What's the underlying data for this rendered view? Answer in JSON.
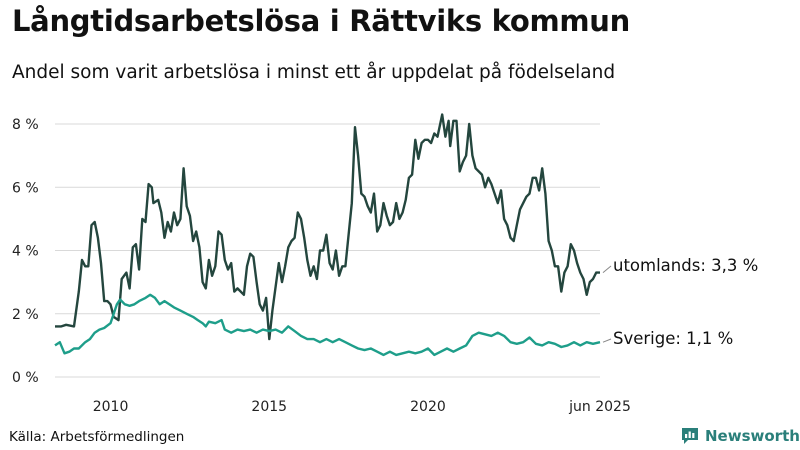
{
  "header": {
    "title": "Långtidsarbetslösa i Rättviks kommun",
    "subtitle": "Andel som varit arbetslösa i minst ett år uppdelat på födelseland"
  },
  "footer": {
    "source": "Källa: Arbetsförmedlingen",
    "brand": "Newsworthy",
    "brand_icon": "bar-chart-speech-icon"
  },
  "colors": {
    "utomlands": "#24463e",
    "sverige": "#1e9e8a",
    "grid": "#d9d9d9",
    "brand": "#2a7f7a"
  },
  "chart_data": {
    "type": "line",
    "title": "Långtidsarbetslösa i Rättviks kommun",
    "subtitle": "Andel som varit arbetslösa i minst ett år uppdelat på födelseland",
    "xlim": [
      2008.25,
      2025.42
    ],
    "ylim": [
      0,
      8.5
    ],
    "y_ticks": [
      {
        "value": 0,
        "label": "0 %"
      },
      {
        "value": 2,
        "label": "2 %"
      },
      {
        "value": 4,
        "label": "4 %"
      },
      {
        "value": 6,
        "label": "6 %"
      },
      {
        "value": 8,
        "label": "8 %"
      }
    ],
    "x_ticks": [
      {
        "value": 2010,
        "label": "2010"
      },
      {
        "value": 2015,
        "label": "2015"
      },
      {
        "value": 2020,
        "label": "2020"
      },
      {
        "value": 2025.42,
        "label": "jun 2025"
      }
    ],
    "grid": true,
    "series": [
      {
        "name": "utomlands",
        "end_label": "utomlands: 3,3 %",
        "color": "#24463e",
        "points": [
          [
            2008.25,
            1.6
          ],
          [
            2008.45,
            1.6
          ],
          [
            2008.6,
            1.65
          ],
          [
            2008.85,
            1.6
          ],
          [
            2009.0,
            2.7
          ],
          [
            2009.1,
            3.7
          ],
          [
            2009.2,
            3.5
          ],
          [
            2009.3,
            3.5
          ],
          [
            2009.4,
            4.8
          ],
          [
            2009.5,
            4.9
          ],
          [
            2009.6,
            4.4
          ],
          [
            2009.7,
            3.6
          ],
          [
            2009.8,
            2.4
          ],
          [
            2009.9,
            2.4
          ],
          [
            2010.0,
            2.3
          ],
          [
            2010.1,
            1.9
          ],
          [
            2010.25,
            1.8
          ],
          [
            2010.35,
            3.1
          ],
          [
            2010.5,
            3.3
          ],
          [
            2010.6,
            2.8
          ],
          [
            2010.7,
            4.1
          ],
          [
            2010.8,
            4.2
          ],
          [
            2010.9,
            3.4
          ],
          [
            2011.0,
            5.0
          ],
          [
            2011.1,
            4.9
          ],
          [
            2011.2,
            6.1
          ],
          [
            2011.3,
            6.0
          ],
          [
            2011.35,
            5.5
          ],
          [
            2011.5,
            5.6
          ],
          [
            2011.6,
            5.2
          ],
          [
            2011.7,
            4.4
          ],
          [
            2011.8,
            4.9
          ],
          [
            2011.9,
            4.6
          ],
          [
            2012.0,
            5.2
          ],
          [
            2012.1,
            4.8
          ],
          [
            2012.2,
            5.0
          ],
          [
            2012.3,
            6.6
          ],
          [
            2012.4,
            5.4
          ],
          [
            2012.5,
            5.1
          ],
          [
            2012.6,
            4.3
          ],
          [
            2012.7,
            4.6
          ],
          [
            2012.8,
            4.1
          ],
          [
            2012.9,
            3.0
          ],
          [
            2013.0,
            2.8
          ],
          [
            2013.1,
            3.7
          ],
          [
            2013.2,
            3.2
          ],
          [
            2013.3,
            3.5
          ],
          [
            2013.4,
            4.6
          ],
          [
            2013.5,
            4.5
          ],
          [
            2013.6,
            3.7
          ],
          [
            2013.7,
            3.4
          ],
          [
            2013.8,
            3.6
          ],
          [
            2013.9,
            2.7
          ],
          [
            2014.0,
            2.8
          ],
          [
            2014.2,
            2.6
          ],
          [
            2014.3,
            3.5
          ],
          [
            2014.4,
            3.9
          ],
          [
            2014.5,
            3.8
          ],
          [
            2014.6,
            3.0
          ],
          [
            2014.7,
            2.3
          ],
          [
            2014.8,
            2.1
          ],
          [
            2014.9,
            2.5
          ],
          [
            2015.0,
            1.2
          ],
          [
            2015.1,
            2.1
          ],
          [
            2015.3,
            3.6
          ],
          [
            2015.4,
            3.0
          ],
          [
            2015.5,
            3.5
          ],
          [
            2015.6,
            4.1
          ],
          [
            2015.7,
            4.3
          ],
          [
            2015.8,
            4.4
          ],
          [
            2015.9,
            5.2
          ],
          [
            2016.0,
            5.0
          ],
          [
            2016.1,
            4.4
          ],
          [
            2016.2,
            3.7
          ],
          [
            2016.3,
            3.2
          ],
          [
            2016.4,
            3.5
          ],
          [
            2016.5,
            3.1
          ],
          [
            2016.6,
            4.0
          ],
          [
            2016.7,
            4.0
          ],
          [
            2016.8,
            4.5
          ],
          [
            2016.9,
            3.6
          ],
          [
            2017.0,
            3.4
          ],
          [
            2017.1,
            4.0
          ],
          [
            2017.2,
            3.2
          ],
          [
            2017.3,
            3.5
          ],
          [
            2017.4,
            3.5
          ],
          [
            2017.5,
            4.5
          ],
          [
            2017.6,
            5.5
          ],
          [
            2017.7,
            7.9
          ],
          [
            2017.8,
            7.0
          ],
          [
            2017.9,
            5.8
          ],
          [
            2018.0,
            5.7
          ],
          [
            2018.1,
            5.4
          ],
          [
            2018.2,
            5.2
          ],
          [
            2018.3,
            5.8
          ],
          [
            2018.4,
            4.6
          ],
          [
            2018.5,
            4.8
          ],
          [
            2018.6,
            5.5
          ],
          [
            2018.7,
            5.1
          ],
          [
            2018.8,
            4.8
          ],
          [
            2018.9,
            4.9
          ],
          [
            2019.0,
            5.5
          ],
          [
            2019.1,
            5.0
          ],
          [
            2019.2,
            5.2
          ],
          [
            2019.3,
            5.6
          ],
          [
            2019.4,
            6.3
          ],
          [
            2019.5,
            6.4
          ],
          [
            2019.6,
            7.5
          ],
          [
            2019.7,
            6.9
          ],
          [
            2019.8,
            7.4
          ],
          [
            2019.9,
            7.5
          ],
          [
            2020.0,
            7.5
          ],
          [
            2020.1,
            7.4
          ],
          [
            2020.2,
            7.7
          ],
          [
            2020.3,
            7.6
          ],
          [
            2020.45,
            8.3
          ],
          [
            2020.55,
            7.6
          ],
          [
            2020.65,
            8.1
          ],
          [
            2020.7,
            7.3
          ],
          [
            2020.8,
            8.1
          ],
          [
            2020.9,
            8.1
          ],
          [
            2021.0,
            6.5
          ],
          [
            2021.1,
            6.8
          ],
          [
            2021.2,
            7.0
          ],
          [
            2021.3,
            8.0
          ],
          [
            2021.4,
            7.0
          ],
          [
            2021.5,
            6.6
          ],
          [
            2021.6,
            6.5
          ],
          [
            2021.7,
            6.4
          ],
          [
            2021.8,
            6.0
          ],
          [
            2021.9,
            6.3
          ],
          [
            2022.0,
            6.1
          ],
          [
            2022.2,
            5.5
          ],
          [
            2022.3,
            5.9
          ],
          [
            2022.4,
            5.0
          ],
          [
            2022.5,
            4.8
          ],
          [
            2022.6,
            4.4
          ],
          [
            2022.7,
            4.3
          ],
          [
            2022.8,
            4.8
          ],
          [
            2022.9,
            5.3
          ],
          [
            2023.0,
            5.5
          ],
          [
            2023.1,
            5.7
          ],
          [
            2023.2,
            5.8
          ],
          [
            2023.3,
            6.3
          ],
          [
            2023.4,
            6.3
          ],
          [
            2023.5,
            5.9
          ],
          [
            2023.6,
            6.6
          ],
          [
            2023.7,
            5.8
          ],
          [
            2023.8,
            4.3
          ],
          [
            2023.9,
            4.0
          ],
          [
            2024.0,
            3.5
          ],
          [
            2024.1,
            3.5
          ],
          [
            2024.2,
            2.7
          ],
          [
            2024.3,
            3.3
          ],
          [
            2024.4,
            3.5
          ],
          [
            2024.5,
            4.2
          ],
          [
            2024.6,
            4.0
          ],
          [
            2024.7,
            3.6
          ],
          [
            2024.8,
            3.3
          ],
          [
            2024.9,
            3.1
          ],
          [
            2025.0,
            2.6
          ],
          [
            2025.1,
            3.0
          ],
          [
            2025.2,
            3.1
          ],
          [
            2025.3,
            3.3
          ],
          [
            2025.42,
            3.3
          ]
        ]
      },
      {
        "name": "Sverige",
        "end_label": "Sverige: 1,1 %",
        "color": "#1e9e8a",
        "points": [
          [
            2008.25,
            1.0
          ],
          [
            2008.4,
            1.1
          ],
          [
            2008.55,
            0.75
          ],
          [
            2008.7,
            0.8
          ],
          [
            2008.85,
            0.9
          ],
          [
            2009.0,
            0.9
          ],
          [
            2009.2,
            1.1
          ],
          [
            2009.35,
            1.2
          ],
          [
            2009.5,
            1.4
          ],
          [
            2009.65,
            1.5
          ],
          [
            2009.8,
            1.55
          ],
          [
            2010.0,
            1.7
          ],
          [
            2010.1,
            2.0
          ],
          [
            2010.2,
            2.3
          ],
          [
            2010.3,
            2.45
          ],
          [
            2010.45,
            2.3
          ],
          [
            2010.6,
            2.25
          ],
          [
            2010.75,
            2.3
          ],
          [
            2010.9,
            2.4
          ],
          [
            2011.1,
            2.5
          ],
          [
            2011.25,
            2.6
          ],
          [
            2011.4,
            2.5
          ],
          [
            2011.55,
            2.3
          ],
          [
            2011.7,
            2.4
          ],
          [
            2011.85,
            2.3
          ],
          [
            2012.0,
            2.2
          ],
          [
            2012.2,
            2.1
          ],
          [
            2012.4,
            2.0
          ],
          [
            2012.6,
            1.9
          ],
          [
            2012.75,
            1.8
          ],
          [
            2012.9,
            1.7
          ],
          [
            2013.0,
            1.6
          ],
          [
            2013.1,
            1.75
          ],
          [
            2013.3,
            1.7
          ],
          [
            2013.5,
            1.8
          ],
          [
            2013.6,
            1.5
          ],
          [
            2013.8,
            1.4
          ],
          [
            2014.0,
            1.5
          ],
          [
            2014.2,
            1.45
          ],
          [
            2014.4,
            1.5
          ],
          [
            2014.6,
            1.4
          ],
          [
            2014.8,
            1.5
          ],
          [
            2015.0,
            1.45
          ],
          [
            2015.2,
            1.5
          ],
          [
            2015.4,
            1.4
          ],
          [
            2015.6,
            1.6
          ],
          [
            2015.8,
            1.45
          ],
          [
            2016.0,
            1.3
          ],
          [
            2016.2,
            1.2
          ],
          [
            2016.4,
            1.2
          ],
          [
            2016.6,
            1.1
          ],
          [
            2016.8,
            1.2
          ],
          [
            2017.0,
            1.1
          ],
          [
            2017.2,
            1.2
          ],
          [
            2017.4,
            1.1
          ],
          [
            2017.6,
            1.0
          ],
          [
            2017.8,
            0.9
          ],
          [
            2018.0,
            0.85
          ],
          [
            2018.2,
            0.9
          ],
          [
            2018.4,
            0.8
          ],
          [
            2018.6,
            0.7
          ],
          [
            2018.8,
            0.8
          ],
          [
            2019.0,
            0.7
          ],
          [
            2019.2,
            0.75
          ],
          [
            2019.4,
            0.8
          ],
          [
            2019.6,
            0.75
          ],
          [
            2019.8,
            0.8
          ],
          [
            2020.0,
            0.9
          ],
          [
            2020.2,
            0.7
          ],
          [
            2020.4,
            0.8
          ],
          [
            2020.6,
            0.9
          ],
          [
            2020.8,
            0.8
          ],
          [
            2021.0,
            0.9
          ],
          [
            2021.2,
            1.0
          ],
          [
            2021.4,
            1.3
          ],
          [
            2021.6,
            1.4
          ],
          [
            2021.8,
            1.35
          ],
          [
            2022.0,
            1.3
          ],
          [
            2022.2,
            1.4
          ],
          [
            2022.4,
            1.3
          ],
          [
            2022.6,
            1.1
          ],
          [
            2022.8,
            1.05
          ],
          [
            2023.0,
            1.1
          ],
          [
            2023.2,
            1.25
          ],
          [
            2023.4,
            1.05
          ],
          [
            2023.6,
            1.0
          ],
          [
            2023.8,
            1.1
          ],
          [
            2024.0,
            1.05
          ],
          [
            2024.2,
            0.95
          ],
          [
            2024.4,
            1.0
          ],
          [
            2024.6,
            1.1
          ],
          [
            2024.8,
            1.0
          ],
          [
            2025.0,
            1.1
          ],
          [
            2025.2,
            1.05
          ],
          [
            2025.42,
            1.1
          ]
        ]
      }
    ]
  }
}
